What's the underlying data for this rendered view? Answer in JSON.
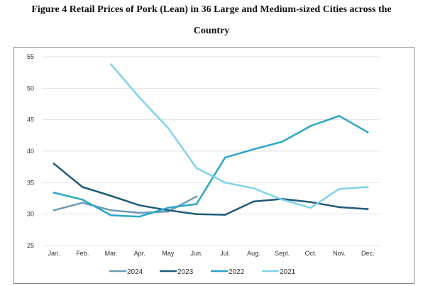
{
  "figure": {
    "title_line1": "Figure 4 Retail Prices of Pork (Lean) in 36 Large and Medium-sized Cities across the",
    "title_line2": "Country"
  },
  "chart_data": {
    "type": "line",
    "title": "Figure 4 Retail Prices of Pork (Lean) in 36 Large and Medium-sized Cities across the Country",
    "xlabel": "",
    "ylabel": "",
    "categories": [
      "Jan.",
      "Feb.",
      "Mar.",
      "Apr.",
      "May",
      "Jun.",
      "Jul.",
      "Aug.",
      "Sept.",
      "Oct.",
      "Nov.",
      "Dec."
    ],
    "ylim": [
      25,
      55
    ],
    "yticks": [
      25,
      30,
      35,
      40,
      45,
      50,
      55
    ],
    "grid": "horizontal",
    "legend_position": "bottom",
    "series": [
      {
        "name": "2024",
        "color": "#6b9ab8",
        "values": [
          30.6,
          31.8,
          30.6,
          30.2,
          30.4,
          32.8,
          null,
          null,
          null,
          null,
          null,
          null
        ]
      },
      {
        "name": "2023",
        "color": "#1f5a7a",
        "values": [
          38.0,
          34.3,
          32.9,
          31.4,
          30.6,
          30.0,
          29.9,
          32.0,
          32.4,
          31.9,
          31.1,
          30.8
        ]
      },
      {
        "name": "2022",
        "color": "#2aa6c8",
        "values": [
          33.4,
          32.3,
          29.8,
          29.6,
          31.0,
          31.6,
          39.0,
          40.3,
          41.5,
          44.0,
          45.6,
          43.0
        ]
      },
      {
        "name": "2021",
        "color": "#7fd3ec",
        "values": [
          null,
          null,
          53.8,
          48.5,
          43.7,
          37.3,
          35.0,
          34.1,
          32.3,
          31.0,
          34.0,
          34.3
        ]
      }
    ]
  }
}
